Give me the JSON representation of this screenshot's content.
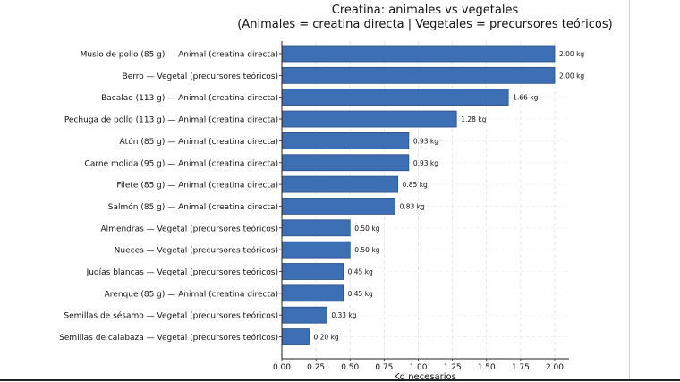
{
  "chart_data": {
    "type": "bar",
    "orientation": "horizontal",
    "title": "Creatina: animales vs vegetales",
    "subtitle": "(Animales = creatina directa | Vegetales = precursores teóricos)",
    "xlabel": "Kg necesarios",
    "ylabel": "",
    "xlim": [
      0,
      2.1
    ],
    "xticks": [
      "0.00",
      "0.25",
      "0.50",
      "0.75",
      "1.00",
      "1.25",
      "1.50",
      "1.75",
      "2.00"
    ],
    "grid": true,
    "bar_color": "#3d6fb5",
    "categories": [
      "Muslo de pollo (85 g) — Animal (creatina directa)",
      "Berro — Vegetal (precursores teóricos)",
      "Bacalao (113 g) — Animal (creatina directa)",
      "Pechuga de pollo (113 g) — Animal (creatina directa)",
      "Atún (85 g) — Animal (creatina directa)",
      "Carne molida (95 g) — Animal (creatina directa)",
      "Filete (85 g) — Animal (creatina directa)",
      "Salmón (85 g) — Animal (creatina directa)",
      "Almendras — Vegetal (precursores teóricos)",
      "Nueces — Vegetal (precursores teóricos)",
      "Judías blancas — Vegetal (precursores teóricos)",
      "Arenque (85 g) — Animal (creatina directa)",
      "Semillas de sésamo — Vegetal (precursores teóricos)",
      "Semillas de calabaza — Vegetal (precursores teóricos)"
    ],
    "values": [
      2.0,
      2.0,
      1.66,
      1.28,
      0.93,
      0.93,
      0.85,
      0.83,
      0.5,
      0.5,
      0.45,
      0.45,
      0.33,
      0.2
    ],
    "data_labels": [
      "2.00 kg",
      "2.00 kg",
      "1.66 kg",
      "1.28 kg",
      "0.93 kg",
      "0.93 kg",
      "0.85 kg",
      "0.83 kg",
      "0.50 kg",
      "0.50 kg",
      "0.45 kg",
      "0.45 kg",
      "0.33 kg",
      "0.20 kg"
    ]
  }
}
